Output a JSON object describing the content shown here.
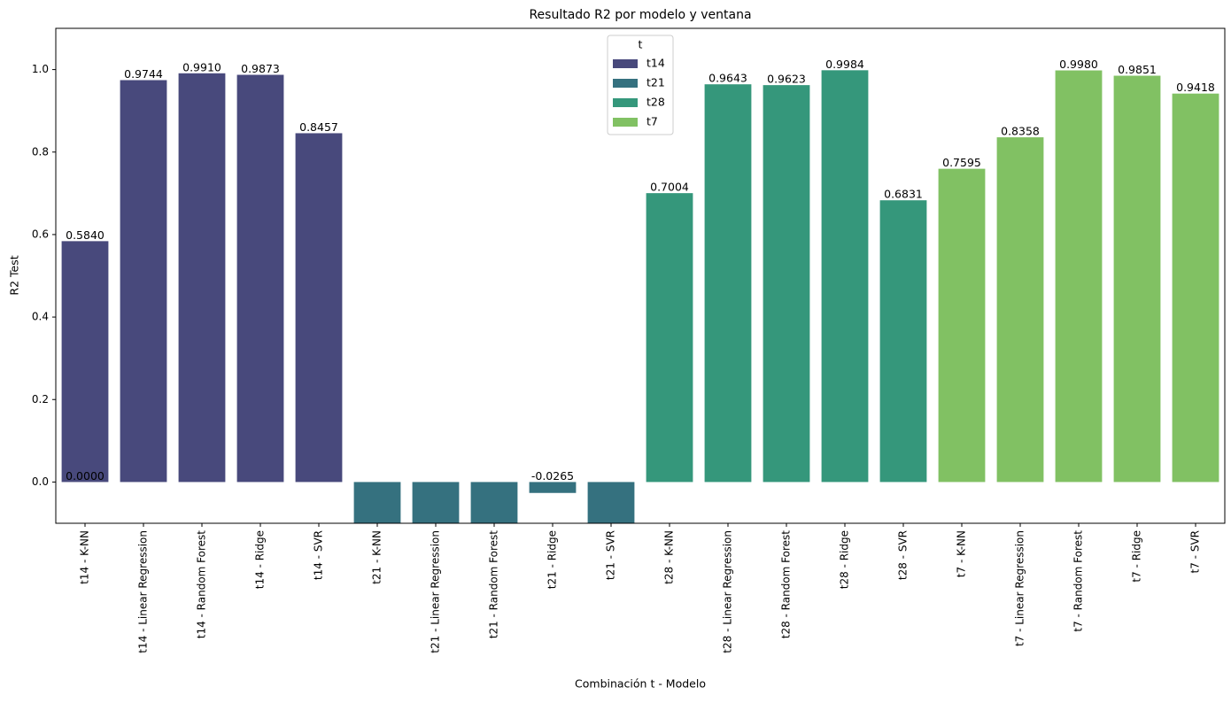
{
  "chart_data": {
    "type": "bar",
    "title": "Resultado R2 por modelo y ventana",
    "x_label": "Combinación t - Modelo",
    "y_label": "R2 Test",
    "categories": [
      "t14 - K-NN",
      "t14 - Linear Regression",
      "t14 - Random Forest",
      "t14 - Ridge",
      "t14 - SVR",
      "t21 - K-NN",
      "t21 - Linear Regression",
      "t21 - Random Forest",
      "t21 - Ridge",
      "t21 - SVR",
      "t28 - K-NN",
      "t28 - Linear Regression",
      "t28 - Random Forest",
      "t28 - Ridge",
      "t28 - SVR",
      "t7 - K-NN",
      "t7 - Linear Regression",
      "t7 - Random Forest",
      "t7 - Ridge",
      "t7 - SVR"
    ],
    "legend_title": "t",
    "legend_position": "upper center",
    "series": [
      {
        "name": "t14",
        "color": "#48497c",
        "values": [
          0.584,
          0.9744,
          0.991,
          0.9873,
          0.8457,
          null,
          null,
          null,
          null,
          null,
          null,
          null,
          null,
          null,
          null,
          null,
          null,
          null,
          null,
          null
        ],
        "value_labels": [
          "0.5840",
          "0.9744",
          "0.9910",
          "0.9873",
          "0.8457",
          null,
          null,
          null,
          null,
          null,
          null,
          null,
          null,
          null,
          null,
          null,
          null,
          null,
          null,
          null
        ]
      },
      {
        "name": "t21",
        "color": "#35717f",
        "values": [
          null,
          null,
          null,
          null,
          null,
          -0.2,
          -0.2,
          -0.2,
          -0.0265,
          -0.2,
          null,
          null,
          null,
          null,
          null,
          null,
          null,
          null,
          null,
          null
        ],
        "value_labels": [
          null,
          null,
          null,
          null,
          null,
          null,
          null,
          null,
          "-0.0265",
          null,
          null,
          null,
          null,
          null,
          null,
          null,
          null,
          null,
          null,
          null
        ]
      },
      {
        "name": "t28",
        "color": "#35977b",
        "values": [
          null,
          null,
          null,
          null,
          null,
          null,
          null,
          null,
          null,
          null,
          0.7004,
          0.9643,
          0.9623,
          0.9984,
          0.6831,
          null,
          null,
          null,
          null,
          null
        ],
        "value_labels": [
          null,
          null,
          null,
          null,
          null,
          null,
          null,
          null,
          null,
          null,
          "0.7004",
          "0.9643",
          "0.9623",
          "0.9984",
          "0.6831",
          null,
          null,
          null,
          null,
          null
        ]
      },
      {
        "name": "t7",
        "color": "#81c163",
        "values": [
          null,
          null,
          null,
          null,
          null,
          null,
          null,
          null,
          null,
          null,
          null,
          null,
          null,
          null,
          null,
          0.7595,
          0.8358,
          0.998,
          0.9851,
          0.9418
        ],
        "value_labels": [
          null,
          null,
          null,
          null,
          null,
          null,
          null,
          null,
          null,
          null,
          null,
          null,
          null,
          null,
          null,
          "0.7595",
          "0.8358",
          "0.9980",
          "0.9851",
          "0.9418"
        ]
      }
    ],
    "annotations": [
      {
        "text": "0.0000",
        "x": "t14 - K-NN",
        "y": 0
      }
    ],
    "ylim": [
      -0.1,
      1.1
    ],
    "yticks": [
      {
        "value": 0,
        "label": "0.0"
      },
      {
        "value": 0.2,
        "label": "0.2"
      },
      {
        "value": 0.4,
        "label": "0.4"
      },
      {
        "value": 0.6,
        "label": "0.6"
      },
      {
        "value": 0.8,
        "label": "0.8"
      },
      {
        "value": 1,
        "label": "1.0"
      }
    ]
  }
}
